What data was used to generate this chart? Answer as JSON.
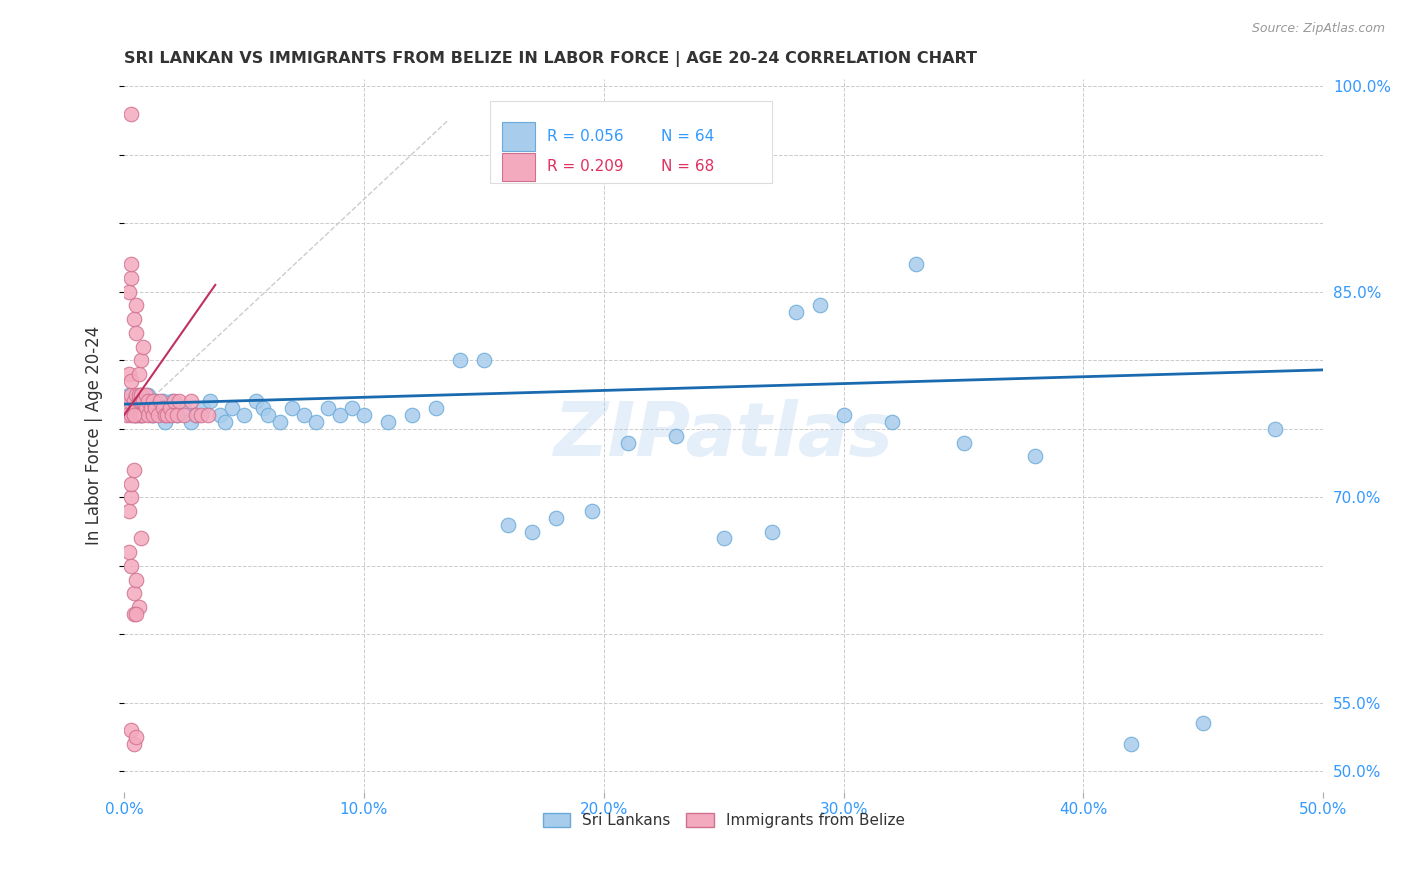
{
  "title": "SRI LANKAN VS IMMIGRANTS FROM BELIZE IN LABOR FORCE | AGE 20-24 CORRELATION CHART",
  "source": "Source: ZipAtlas.com",
  "ylabel": "In Labor Force | Age 20-24",
  "xlim": [
    0.0,
    0.5
  ],
  "ylim": [
    0.485,
    1.005
  ],
  "blue_color": "#A8CCEC",
  "blue_edge": "#6AAAD8",
  "pink_color": "#F4AABE",
  "pink_edge": "#D07090",
  "blue_line_color": "#1A6AAF",
  "pink_line_color": "#C03060",
  "ref_line_color": "#CCCCCC",
  "watermark_color": "#AACCEE",
  "grid_color": "#CCCCCC",
  "axis_tick_color": "#3399FF",
  "title_color": "#333333",
  "source_color": "#999999",
  "blue_label": "R = 0.056   N = 64",
  "pink_label": "R = 0.209   N = 68",
  "legend_r_blue": "R = 0.056",
  "legend_n_blue": "N = 64",
  "legend_r_pink": "R = 0.209",
  "legend_n_pink": "N = 68",
  "sri_lankan_x": [
    0.002,
    0.003,
    0.004,
    0.005,
    0.006,
    0.007,
    0.007,
    0.008,
    0.009,
    0.01,
    0.011,
    0.012,
    0.013,
    0.014,
    0.015,
    0.016,
    0.017,
    0.018,
    0.019,
    0.02,
    0.022,
    0.025,
    0.028,
    0.03,
    0.033,
    0.036,
    0.04,
    0.042,
    0.045,
    0.05,
    0.055,
    0.058,
    0.06,
    0.065,
    0.07,
    0.075,
    0.08,
    0.085,
    0.09,
    0.095,
    0.1,
    0.11,
    0.12,
    0.13,
    0.14,
    0.15,
    0.16,
    0.17,
    0.18,
    0.195,
    0.21,
    0.23,
    0.25,
    0.27,
    0.3,
    0.32,
    0.35,
    0.38,
    0.42,
    0.45,
    0.28,
    0.29,
    0.33,
    0.48
  ],
  "sri_lankan_y": [
    0.775,
    0.77,
    0.765,
    0.76,
    0.77,
    0.775,
    0.76,
    0.77,
    0.765,
    0.775,
    0.76,
    0.76,
    0.77,
    0.765,
    0.76,
    0.77,
    0.755,
    0.765,
    0.76,
    0.77,
    0.76,
    0.765,
    0.755,
    0.76,
    0.765,
    0.77,
    0.76,
    0.755,
    0.765,
    0.76,
    0.77,
    0.765,
    0.76,
    0.755,
    0.765,
    0.76,
    0.755,
    0.765,
    0.76,
    0.765,
    0.76,
    0.755,
    0.76,
    0.765,
    0.8,
    0.8,
    0.68,
    0.675,
    0.685,
    0.69,
    0.74,
    0.745,
    0.67,
    0.675,
    0.76,
    0.755,
    0.74,
    0.73,
    0.52,
    0.535,
    0.835,
    0.84,
    0.87,
    0.75
  ],
  "belize_x": [
    0.001,
    0.002,
    0.002,
    0.003,
    0.003,
    0.003,
    0.004,
    0.004,
    0.005,
    0.005,
    0.005,
    0.006,
    0.006,
    0.006,
    0.007,
    0.007,
    0.007,
    0.008,
    0.008,
    0.009,
    0.009,
    0.01,
    0.01,
    0.011,
    0.012,
    0.012,
    0.013,
    0.014,
    0.015,
    0.016,
    0.017,
    0.018,
    0.019,
    0.02,
    0.021,
    0.022,
    0.023,
    0.025,
    0.028,
    0.03,
    0.032,
    0.035,
    0.002,
    0.003,
    0.003,
    0.004,
    0.005,
    0.005,
    0.004,
    0.006,
    0.007,
    0.008,
    0.002,
    0.003,
    0.004,
    0.005,
    0.006,
    0.007,
    0.003,
    0.004,
    0.005,
    0.003,
    0.004,
    0.005,
    0.002,
    0.003,
    0.003,
    0.004
  ],
  "belize_y": [
    0.76,
    0.77,
    0.79,
    0.76,
    0.775,
    0.785,
    0.76,
    0.77,
    0.765,
    0.775,
    0.76,
    0.77,
    0.775,
    0.76,
    0.77,
    0.76,
    0.775,
    0.76,
    0.77,
    0.765,
    0.775,
    0.76,
    0.77,
    0.765,
    0.77,
    0.76,
    0.765,
    0.76,
    0.77,
    0.765,
    0.76,
    0.76,
    0.765,
    0.76,
    0.77,
    0.76,
    0.77,
    0.76,
    0.77,
    0.76,
    0.76,
    0.76,
    0.85,
    0.86,
    0.87,
    0.83,
    0.84,
    0.82,
    0.76,
    0.79,
    0.8,
    0.81,
    0.66,
    0.65,
    0.63,
    0.64,
    0.62,
    0.67,
    0.98,
    0.615,
    0.615,
    0.53,
    0.52,
    0.525,
    0.69,
    0.7,
    0.71,
    0.72
  ]
}
